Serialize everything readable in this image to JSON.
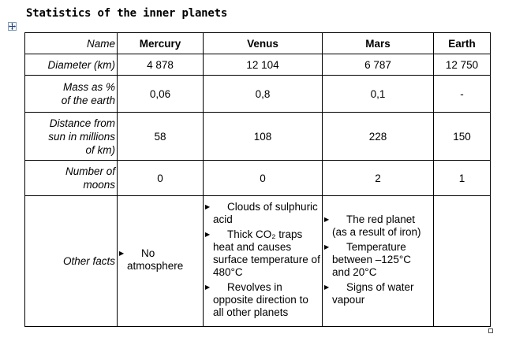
{
  "document": {
    "title": "Statistics of the inner planets"
  },
  "table": {
    "header_row_label": "Name",
    "planets": [
      "Mercury",
      "Venus",
      "Mars",
      "Earth"
    ],
    "rows": [
      {
        "label": "Diameter (km)",
        "values": [
          "4 878",
          "12 104",
          "6 787",
          "12 750"
        ]
      },
      {
        "label_lines": [
          "Mass as %",
          "of the earth"
        ],
        "values": [
          "0,06",
          "0,8",
          "0,1",
          "-"
        ]
      },
      {
        "label_lines": [
          "Distance from",
          "sun in millions",
          "of km)"
        ],
        "values": [
          "58",
          "108",
          "228",
          "150"
        ]
      },
      {
        "label_lines": [
          "Number of",
          "moons"
        ],
        "values": [
          "0",
          "0",
          "2",
          "1"
        ]
      }
    ],
    "other_facts": {
      "label": "Other facts",
      "mercury": [
        "No atmosphere"
      ],
      "venus": [
        "Clouds of sulphuric acid",
        "Thick CO₂ traps heat and causes surface temperature of 480°C",
        "Revolves in opposite direction to all other planets"
      ],
      "mars": [
        "The red planet (as a result of iron)",
        "Temperature between –125°C and 20°C",
        "Signs of water vapour"
      ],
      "earth": []
    }
  },
  "icons": {
    "bullet": "▶",
    "move_handle": "move-cross-icon"
  }
}
